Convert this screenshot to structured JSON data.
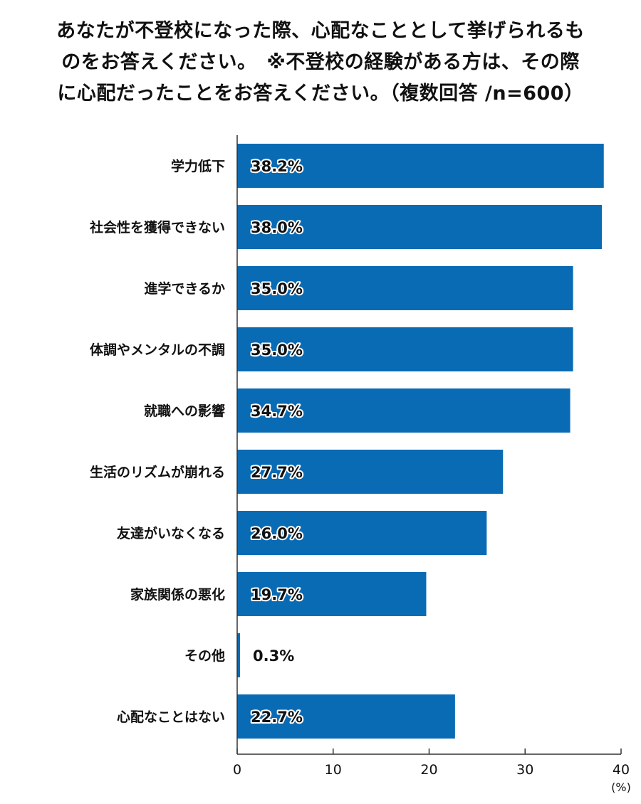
{
  "chart_data": {
    "type": "bar",
    "orientation": "horizontal",
    "title_lines": [
      "あなたが不登校になった際、心配なこととして挙げられるも",
      "のをお答えください。　※不登校の経験がある方は、その際",
      "に心配だったことをお答えください。（複数回答 /n=600）"
    ],
    "categories": [
      "学力低下",
      "社会性を獲得できない",
      "進学できるか",
      "体調やメンタルの不調",
      "就職への影響",
      "生活のリズムが崩れる",
      "友達がいなくなる",
      "家族関係の悪化",
      "その他",
      "心配なことはない"
    ],
    "values": [
      38.2,
      38.0,
      35.0,
      35.0,
      34.7,
      27.7,
      26.0,
      19.7,
      0.3,
      22.7
    ],
    "value_labels": [
      "38.2%",
      "38.0%",
      "35.0%",
      "35.0%",
      "34.7%",
      "27.7%",
      "26.0%",
      "19.7%",
      "0.3%",
      "22.7%"
    ],
    "xlim": [
      0,
      40
    ],
    "xticks": [
      0,
      10,
      20,
      30,
      40
    ],
    "xtick_labels": [
      "0",
      "10",
      "20",
      "30",
      "40"
    ],
    "unit_label": "(%)",
    "bar_color": "#0a6bb5",
    "grid": false
  }
}
